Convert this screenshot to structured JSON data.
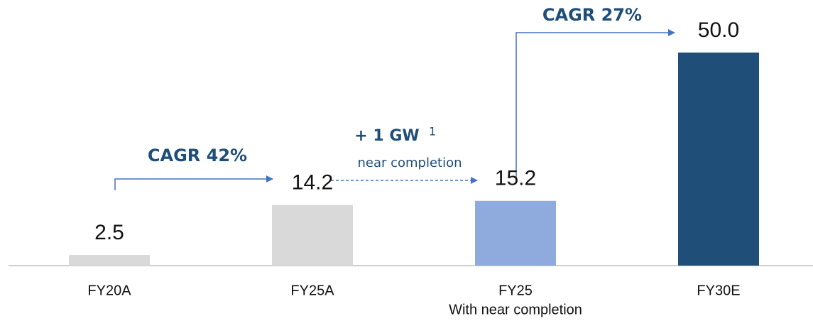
{
  "chart_data": {
    "type": "bar",
    "categories": [
      "FY20A",
      "FY25A",
      "FY25",
      "FY30E"
    ],
    "category_sublabels": [
      null,
      null,
      "With near completion",
      null
    ],
    "values": [
      2.5,
      14.2,
      15.2,
      50.0
    ],
    "value_labels": [
      "2.5",
      "14.2",
      "15.2",
      "50.0"
    ],
    "colors": [
      "#d9d9d9",
      "#d9d9d9",
      "#8faadc",
      "#1f4e79"
    ],
    "ylim": [
      0,
      50
    ],
    "annotations": {
      "cagr_1": "CAGR 42%",
      "gw": "+ 1 GW",
      "gw_footnote": "1",
      "gw_note": "near completion",
      "cagr_2": "CAGR 27%"
    }
  }
}
